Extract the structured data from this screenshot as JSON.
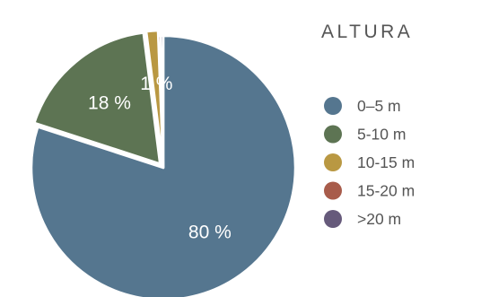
{
  "chart_data": {
    "type": "pie",
    "title": "ALTURA",
    "categories": [
      "0–5 m",
      "5-10 m",
      "10-15 m",
      "15-20 m",
      ">20 m"
    ],
    "values": [
      80,
      18,
      1.4,
      0.3,
      0.3
    ],
    "data_labels": [
      "80 %",
      "18 %",
      "1 %",
      "",
      ""
    ],
    "colors": [
      "#55768f",
      "#5d7453",
      "#b99842",
      "#a85c4b",
      "#665a7b"
    ],
    "legend_position": "right",
    "start_angle": "12 o'clock",
    "direction": "clockwise"
  }
}
